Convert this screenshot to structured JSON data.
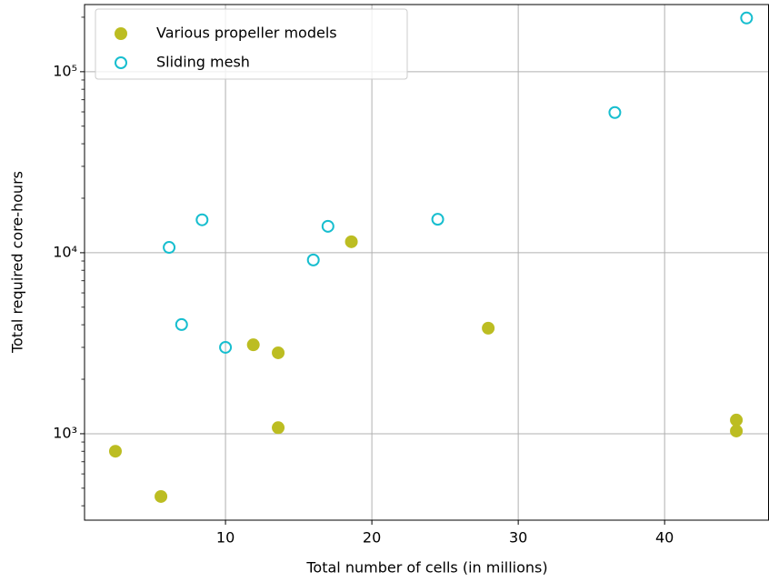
{
  "chart_data": {
    "type": "scatter",
    "xlabel": "Total number of cells (in millions)",
    "ylabel": "Total required core-hours",
    "xlim": [
      0.37,
      47.1
    ],
    "ylim": [
      333,
      235000
    ],
    "ylog": true,
    "grid": true,
    "legend": "upper left",
    "xticks": [
      10,
      20,
      30,
      40
    ],
    "yticks": [
      {
        "value": 1000,
        "label": "10³"
      },
      {
        "value": 10000,
        "label": "10⁴"
      },
      {
        "value": 100000,
        "label": "10⁵"
      }
    ],
    "series": [
      {
        "name": "Various propeller models",
        "color": "#bcbd22",
        "filled": true,
        "x": [
          2.48,
          5.59,
          11.9,
          13.6,
          13.6,
          18.6,
          27.95,
          44.9,
          44.9
        ],
        "values": [
          800,
          450,
          3100,
          2800,
          1080,
          11500,
          3830,
          1190,
          1035
        ]
      },
      {
        "name": "Sliding mesh",
        "color": "#17becf",
        "filled": false,
        "x": [
          6.15,
          7.0,
          8.4,
          10.0,
          16.0,
          17.0,
          24.5,
          36.6,
          45.6
        ],
        "values": [
          10700,
          4010,
          15200,
          3000,
          9120,
          14000,
          15300,
          59500,
          198000
        ]
      }
    ]
  }
}
